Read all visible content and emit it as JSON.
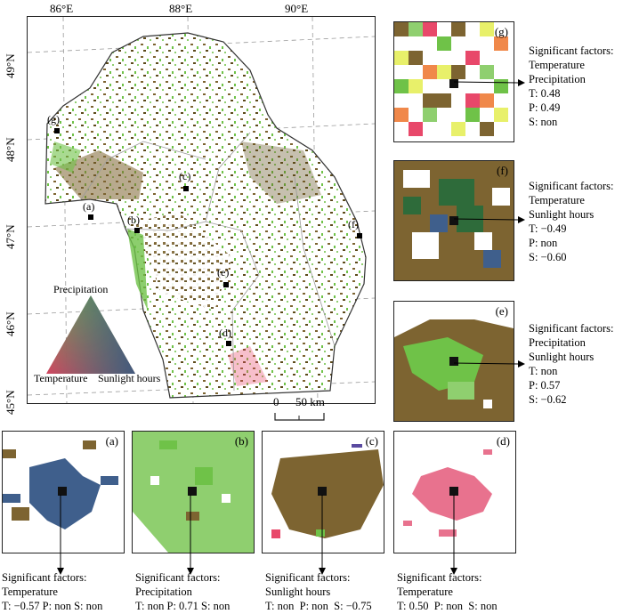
{
  "map": {
    "lon_ticks": [
      "86°E",
      "88°E",
      "90°E"
    ],
    "lat_ticks": [
      "49°N",
      "48°N",
      "47°N",
      "46°N",
      "45°N"
    ],
    "scalebar": {
      "zero": "0",
      "label": "50 km"
    },
    "sites": [
      "(a)",
      "(b)",
      "(c)",
      "(d)",
      "(e)",
      "(f)",
      "(g)"
    ]
  },
  "legend": {
    "top": "Precipitation",
    "left": "Temperature",
    "right": "Sunlight hours"
  },
  "colors": {
    "temperature": "#e8486a",
    "precipitation": "#6fc248",
    "sunlight": "#3f5f8c",
    "temp_precip": "#7a6a2a",
    "temp_sun": "#5c4a1a",
    "olive": "#7d6431",
    "dark_green": "#2e6b3a",
    "light_green": "#8fcf6f"
  },
  "panels": {
    "a": {
      "label": "(a)",
      "title": "Significant factors:",
      "factors": "Temperature",
      "stats": "T: −0.57 P: non S: non"
    },
    "b": {
      "label": "(b)",
      "title": "Significant factors:",
      "factors": "Precipitation",
      "stats": "T: non P: 0.71 S: non"
    },
    "c": {
      "label": "(c)",
      "title": "Significant factors:",
      "factors": "Sunlight hours",
      "stats": "T: non  P: non  S: −0.75"
    },
    "d": {
      "label": "(d)",
      "title": "Significant factors:",
      "factors": "Temperature",
      "stats": "T: 0.50  P: non  S: non"
    },
    "e": {
      "label": "(e)",
      "title": "Significant factors:",
      "factors1": "Precipitation",
      "factors2": "Sunlight hours",
      "t": "T: non",
      "p": "P: 0.57",
      "s": "S: −0.62"
    },
    "f": {
      "label": "(f)",
      "title": "Significant factors:",
      "factors1": "Temperature",
      "factors2": "Sunlight hours",
      "t": "T: −0.49",
      "p": "P: non",
      "s": "S: −0.60"
    },
    "g": {
      "label": "(g)",
      "title": "Significant factors:",
      "factors1": "Temperature",
      "factors2": "Precipitation",
      "t": "T: 0.48",
      "p": "P: 0.49",
      "s": "S: non"
    }
  }
}
